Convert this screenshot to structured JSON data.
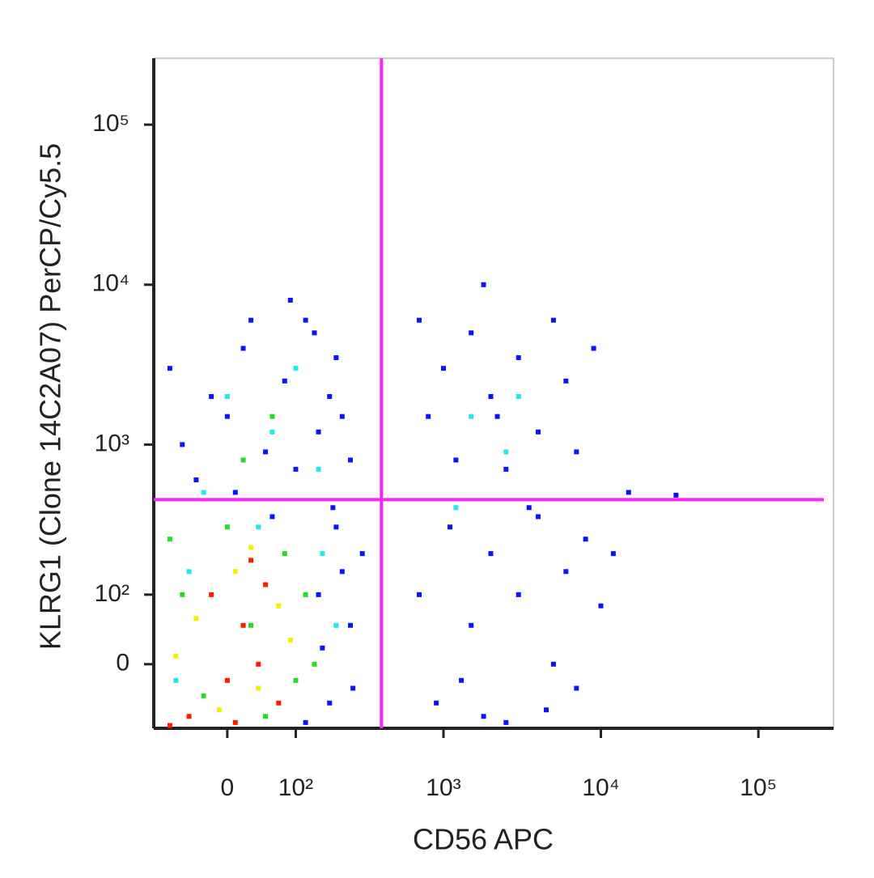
{
  "chart_data": {
    "type": "scatter",
    "scale": "biexponential",
    "x_label": "CD56 APC",
    "y_label": "KLRG1 (Clone 14C2A07) PerCP/Cy5.5",
    "xlim": [
      -110,
      300000
    ],
    "ylim": [
      -90,
      260000
    ],
    "xticks": [
      0,
      {
        "value": 100,
        "label": "10²"
      },
      {
        "value": 1000,
        "label": "10³"
      },
      {
        "value": 10000,
        "label": "10⁴"
      },
      {
        "value": 100000,
        "label": "10⁵"
      }
    ],
    "yticks": [
      0,
      {
        "value": 100,
        "label": "10²"
      },
      {
        "value": 1000,
        "label": "10³"
      },
      {
        "value": 10000,
        "label": "10⁴"
      },
      {
        "value": 100000,
        "label": "10⁵"
      }
    ],
    "gates": {
      "x": 400,
      "y": 450,
      "color": "#ff22ff"
    },
    "series": [
      {
        "color": "#0a14ff",
        "x": [
          -80,
          -40,
          0,
          20,
          50,
          80,
          120,
          150,
          200,
          250,
          -60,
          30,
          100,
          180,
          60,
          -20,
          140,
          220,
          90,
          10,
          150,
          200,
          250,
          180,
          220,
          120,
          300,
          160,
          260,
          190,
          800,
          1000,
          1200,
          1500,
          2000,
          2500,
          3000,
          4000,
          5000,
          6000,
          7000,
          9000,
          1800,
          700,
          2200,
          700,
          900,
          1100,
          1500,
          2000,
          2500,
          3000,
          4000,
          5000,
          6000,
          7000,
          8000,
          10000,
          1300,
          3500,
          12000,
          1800,
          4500,
          15000,
          30000
        ],
        "y": [
          3000,
          600,
          1500,
          4000,
          900,
          2500,
          6000,
          1200,
          3500,
          800,
          1000,
          6000,
          700,
          2000,
          350,
          2000,
          5000,
          1500,
          8000,
          500,
          100,
          300,
          50,
          -50,
          150,
          -80,
          200,
          20,
          -30,
          400,
          1500,
          3000,
          800,
          5000,
          2000,
          700,
          3500,
          1200,
          6000,
          2500,
          900,
          4000,
          10000,
          6000,
          1500,
          100,
          -50,
          300,
          50,
          200,
          -80,
          100,
          350,
          0,
          150,
          -30,
          250,
          80,
          -20,
          400,
          200,
          -70,
          -60,
          500,
          480
        ]
      },
      {
        "color": "#22e8e8",
        "x": [
          0,
          60,
          -30,
          100,
          150,
          40,
          -50,
          160,
          1500,
          2500,
          3000,
          1200,
          200,
          -70
        ],
        "y": [
          2000,
          1200,
          500,
          3000,
          700,
          300,
          150,
          200,
          1500,
          900,
          2000,
          400,
          50,
          -20
        ]
      },
      {
        "color": "#22dd22",
        "x": [
          -60,
          0,
          30,
          80,
          120,
          -30,
          50,
          100,
          20,
          60,
          -80,
          140
        ],
        "y": [
          100,
          300,
          50,
          200,
          100,
          -40,
          -70,
          -20,
          800,
          1500,
          250,
          0
        ]
      },
      {
        "color": "#f0f000",
        "x": [
          -40,
          10,
          40,
          70,
          -10,
          90,
          -70,
          30
        ],
        "y": [
          60,
          150,
          -30,
          80,
          -60,
          30,
          10,
          220
        ]
      },
      {
        "color": "#ff1a00",
        "x": [
          -20,
          20,
          50,
          0,
          -50,
          40,
          10,
          -80,
          70,
          30
        ],
        "y": [
          100,
          50,
          120,
          -20,
          -70,
          0,
          -80,
          -85,
          -50,
          180
        ]
      }
    ]
  }
}
